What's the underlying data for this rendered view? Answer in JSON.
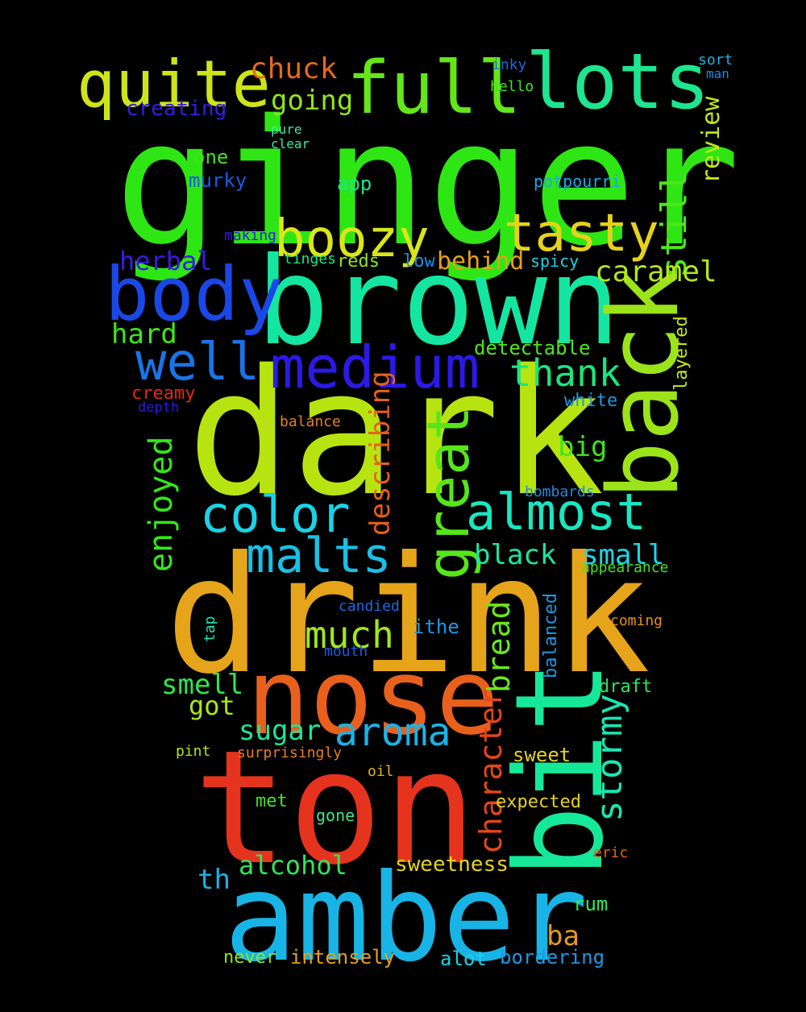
{
  "words": [
    {
      "text": "ginger",
      "color": "#2ee613"
    },
    {
      "text": "dark",
      "color": "#b7e411"
    },
    {
      "text": "drink",
      "color": "#e5a41a"
    },
    {
      "text": "brown",
      "color": "#14e6a1"
    },
    {
      "text": "ton",
      "color": "#e6331d"
    },
    {
      "text": "amber",
      "color": "#18b4e6"
    },
    {
      "text": "bit",
      "color": "#16e89a"
    },
    {
      "text": "nose",
      "color": "#e8601c"
    },
    {
      "text": "back",
      "color": "#9ce41a"
    },
    {
      "text": "full",
      "color": "#64e61a"
    },
    {
      "text": "lots",
      "color": "#1ee58f"
    },
    {
      "text": "quite",
      "color": "#cde41a"
    },
    {
      "text": "body",
      "color": "#1a48e6"
    },
    {
      "text": "medium",
      "color": "#2b1ae6"
    },
    {
      "text": "boozy",
      "color": "#d8e61a"
    },
    {
      "text": "tasty",
      "color": "#e6d21a"
    },
    {
      "text": "well",
      "color": "#1a74e6"
    },
    {
      "text": "great",
      "color": "#56e61a"
    },
    {
      "text": "color",
      "color": "#1ad2e6"
    },
    {
      "text": "almost",
      "color": "#1ae6c0"
    },
    {
      "text": "malts",
      "color": "#1ac0e6"
    },
    {
      "text": "much",
      "color": "#a3e61a"
    },
    {
      "text": "aroma",
      "color": "#1ab3e6"
    },
    {
      "text": "still",
      "color": "#4de61a"
    },
    {
      "text": "thank",
      "color": "#1ae680"
    },
    {
      "text": "caramel",
      "color": "#b3e61a"
    },
    {
      "text": "stormy",
      "color": "#1ae6b3"
    },
    {
      "text": "character",
      "color": "#e6461a"
    },
    {
      "text": "bread",
      "color": "#6ee61a"
    },
    {
      "text": "enjoyed",
      "color": "#35e61a"
    },
    {
      "text": "describing",
      "color": "#e6601a"
    },
    {
      "text": "chuck",
      "color": "#e66a1a"
    },
    {
      "text": "going",
      "color": "#90e61a"
    },
    {
      "text": "hard",
      "color": "#40e61a"
    },
    {
      "text": "herbal",
      "color": "#3b1ae6"
    },
    {
      "text": "smell",
      "color": "#2ee64f"
    },
    {
      "text": "sugar",
      "color": "#1ae69a"
    },
    {
      "text": "got",
      "color": "#a9e61a"
    },
    {
      "text": "black",
      "color": "#1ae6a6"
    },
    {
      "text": "small",
      "color": "#1ad8e6"
    },
    {
      "text": "big",
      "color": "#40e61a"
    },
    {
      "text": "behind",
      "color": "#e6a01a"
    },
    {
      "text": "review",
      "color": "#c6e61a"
    },
    {
      "text": "alcohol",
      "color": "#2ee65a"
    },
    {
      "text": "sweetness",
      "color": "#e6d21a"
    },
    {
      "text": "th",
      "color": "#1ab4e6"
    },
    {
      "text": "ba",
      "color": "#e69a1a"
    },
    {
      "text": "creating",
      "color": "#3b1ae6"
    },
    {
      "text": "one",
      "color": "#3ae61a"
    },
    {
      "text": "murky",
      "color": "#1a5ae6"
    },
    {
      "text": "app",
      "color": "#1ae690"
    },
    {
      "text": "potpourri",
      "color": "#1aa8e6"
    },
    {
      "text": "reds",
      "color": "#90e61a"
    },
    {
      "text": "low",
      "color": "#1a8ce6"
    },
    {
      "text": "spicy",
      "color": "#1ad2e6"
    },
    {
      "text": "detectable",
      "color": "#4ee61a"
    },
    {
      "text": "layered",
      "color": "#c6e61a"
    },
    {
      "text": "creamy",
      "color": "#e6261a"
    },
    {
      "text": "white",
      "color": "#1a9ae6"
    },
    {
      "text": "depth",
      "color": "#2b1ae6"
    },
    {
      "text": "balance",
      "color": "#e6801a"
    },
    {
      "text": "bombards",
      "color": "#1a8ce6"
    },
    {
      "text": "appearance",
      "color": "#40e61a"
    },
    {
      "text": "candied",
      "color": "#1a6ae6"
    },
    {
      "text": "ithe",
      "color": "#1a9ae6"
    },
    {
      "text": "balanced",
      "color": "#1a9ae6"
    },
    {
      "text": "coming",
      "color": "#e6901a"
    },
    {
      "text": "tap",
      "color": "#1ae6b3"
    },
    {
      "text": "mouth",
      "color": "#1a5ae6"
    },
    {
      "text": "draft",
      "color": "#2ee65a"
    },
    {
      "text": "sweet",
      "color": "#e6d21a"
    },
    {
      "text": "pint",
      "color": "#b3e61a"
    },
    {
      "text": "surprisingly",
      "color": "#e6801a"
    },
    {
      "text": "oil",
      "color": "#e6b31a"
    },
    {
      "text": "met",
      "color": "#40e61a"
    },
    {
      "text": "expected",
      "color": "#e6d21a"
    },
    {
      "text": "gone",
      "color": "#40e680"
    },
    {
      "text": "eric",
      "color": "#e6601a"
    },
    {
      "text": "rum",
      "color": "#2ee65a"
    },
    {
      "text": "never",
      "color": "#90e61a"
    },
    {
      "text": "intensely",
      "color": "#e6a01a"
    },
    {
      "text": "alot",
      "color": "#1ad2e6"
    },
    {
      "text": "bordering",
      "color": "#1a9ae6"
    },
    {
      "text": "inky",
      "color": "#1a6ae6"
    },
    {
      "text": "hello",
      "color": "#40e61a"
    },
    {
      "text": "sort",
      "color": "#1ab3e6"
    },
    {
      "text": "man",
      "color": "#1a8ce6"
    },
    {
      "text": "pure",
      "color": "#40e6a6"
    },
    {
      "text": "clear",
      "color": "#40e6a6"
    },
    {
      "text": "making",
      "color": "#3b1ae6"
    },
    {
      "text": "tinges",
      "color": "#1ae680"
    }
  ]
}
